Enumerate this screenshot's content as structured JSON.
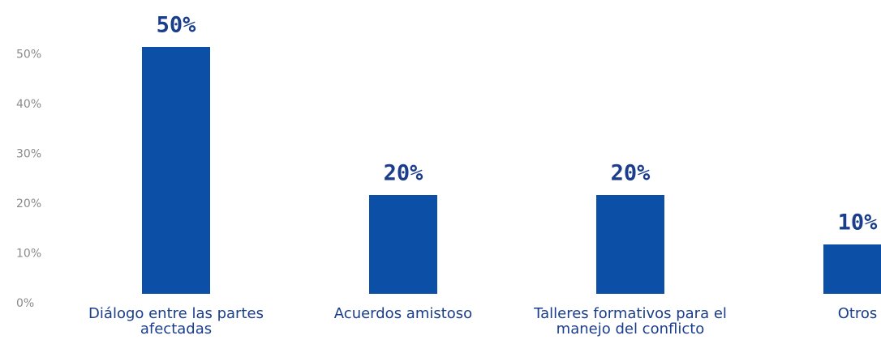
{
  "chart_data": {
    "type": "bar",
    "categories": [
      "Diálogo entre las partes afectadas",
      "Acuerdos amistoso",
      "Talleres formativos para el manejo del conflicto",
      "Otros"
    ],
    "values": [
      50,
      20,
      20,
      10
    ],
    "value_labels": [
      "50%",
      "20%",
      "20%",
      "10%"
    ],
    "color": "#0b4fa6",
    "ylim": [
      0,
      50
    ],
    "yticks": [
      {
        "value": 0,
        "label": "0%"
      },
      {
        "value": 10,
        "label": "10%"
      },
      {
        "value": 20,
        "label": "20%"
      },
      {
        "value": 30,
        "label": "30%"
      },
      {
        "value": 40,
        "label": "40%"
      },
      {
        "value": 50,
        "label": "50%"
      }
    ],
    "grid": false
  }
}
